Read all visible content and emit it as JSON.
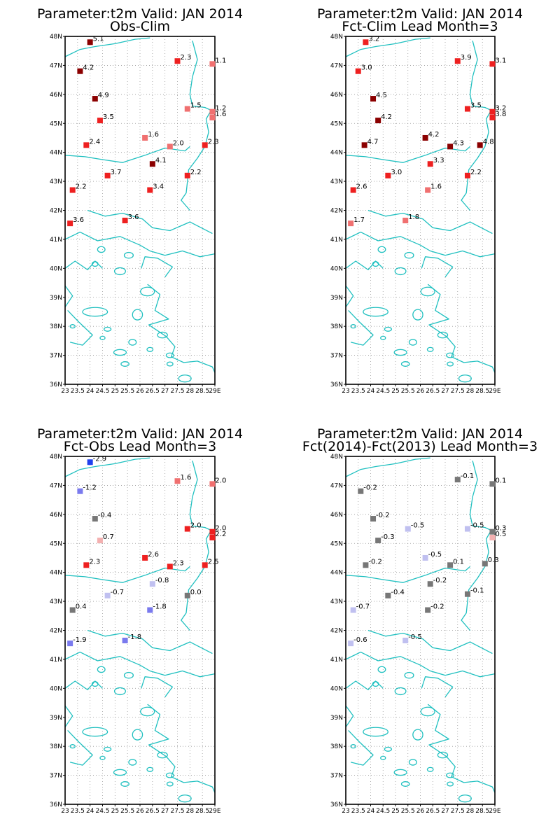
{
  "chart_data": [
    {
      "type": "scatter",
      "title": "Parameter:t2m Valid: JAN 2014",
      "subtitle": "Obs-Clim",
      "xlim": [
        23,
        29
      ],
      "ylim": [
        36,
        48
      ],
      "x_ticks": [
        "23",
        "23.5",
        "24",
        "24.5",
        "25",
        "25.5",
        "26",
        "26.5",
        "27",
        "27.5",
        "28",
        "28.5",
        "29E"
      ],
      "y_ticks": [
        "36N",
        "37N",
        "38N",
        "39N",
        "40N",
        "41N",
        "42N",
        "43N",
        "44N",
        "45N",
        "46N",
        "47N",
        "48N"
      ],
      "grid": true,
      "points": [
        {
          "lon": 24.0,
          "lat": 47.8,
          "label": "5.1",
          "color": "#8b0000"
        },
        {
          "lon": 23.6,
          "lat": 46.8,
          "label": "4.2",
          "color": "#8b0000"
        },
        {
          "lon": 24.2,
          "lat": 45.85,
          "label": "4.9",
          "color": "#8b0000"
        },
        {
          "lon": 24.4,
          "lat": 45.1,
          "label": "3.5",
          "color": "#ee2020"
        },
        {
          "lon": 23.85,
          "lat": 44.25,
          "label": "2.4",
          "color": "#ee2020"
        },
        {
          "lon": 26.2,
          "lat": 44.5,
          "label": "1.6",
          "color": "#f07070"
        },
        {
          "lon": 27.2,
          "lat": 44.2,
          "label": "2.0",
          "color": "#f07070"
        },
        {
          "lon": 28.6,
          "lat": 44.25,
          "label": "2.3",
          "color": "#ee2020"
        },
        {
          "lon": 26.5,
          "lat": 43.6,
          "label": "4.1",
          "color": "#8b0000"
        },
        {
          "lon": 27.5,
          "lat": 47.15,
          "label": "2.3",
          "color": "#ee2020"
        },
        {
          "lon": 28.9,
          "lat": 47.05,
          "label": "1.1",
          "color": "#f07070"
        },
        {
          "lon": 27.9,
          "lat": 45.5,
          "label": "1.5",
          "color": "#f07070"
        },
        {
          "lon": 28.9,
          "lat": 45.4,
          "label": "1.2",
          "color": "#f07070"
        },
        {
          "lon": 28.9,
          "lat": 45.2,
          "label": "1.6",
          "color": "#f07070"
        },
        {
          "lon": 24.7,
          "lat": 43.2,
          "label": "3.7",
          "color": "#ee2020"
        },
        {
          "lon": 27.9,
          "lat": 43.2,
          "label": "2.2",
          "color": "#ee2020"
        },
        {
          "lon": 23.3,
          "lat": 42.7,
          "label": "2.2",
          "color": "#ee2020"
        },
        {
          "lon": 26.4,
          "lat": 42.7,
          "label": "3.4",
          "color": "#ee2020"
        },
        {
          "lon": 25.4,
          "lat": 41.65,
          "label": "3.6",
          "color": "#ee2020"
        },
        {
          "lon": 23.2,
          "lat": 41.55,
          "label": "3.6",
          "color": "#ee2020"
        }
      ]
    },
    {
      "type": "scatter",
      "title": "Parameter:t2m Valid: JAN 2014",
      "subtitle": "Fct-Clim Lead Month=3",
      "xlim": [
        23,
        29
      ],
      "ylim": [
        36,
        48
      ],
      "x_ticks": [
        "23",
        "23.5",
        "24",
        "24.5",
        "25",
        "25.5",
        "26",
        "26.5",
        "27",
        "27.5",
        "28",
        "28.5",
        "29E"
      ],
      "y_ticks": [
        "36N",
        "37N",
        "38N",
        "39N",
        "40N",
        "41N",
        "42N",
        "43N",
        "44N",
        "45N",
        "46N",
        "47N",
        "48N"
      ],
      "grid": true,
      "points": [
        {
          "lon": 23.8,
          "lat": 47.8,
          "label": "3.2",
          "color": "#ee2020"
        },
        {
          "lon": 23.5,
          "lat": 46.8,
          "label": "3.0",
          "color": "#ee2020"
        },
        {
          "lon": 24.1,
          "lat": 45.85,
          "label": "4.5",
          "color": "#8b0000"
        },
        {
          "lon": 24.3,
          "lat": 45.1,
          "label": "4.2",
          "color": "#8b0000"
        },
        {
          "lon": 23.75,
          "lat": 44.25,
          "label": "4.7",
          "color": "#8b0000"
        },
        {
          "lon": 26.2,
          "lat": 44.5,
          "label": "4.2",
          "color": "#8b0000"
        },
        {
          "lon": 27.2,
          "lat": 44.2,
          "label": "4.3",
          "color": "#8b0000"
        },
        {
          "lon": 28.4,
          "lat": 44.25,
          "label": "4.8",
          "color": "#8b0000"
        },
        {
          "lon": 26.4,
          "lat": 43.6,
          "label": "3.3",
          "color": "#ee2020"
        },
        {
          "lon": 27.5,
          "lat": 47.15,
          "label": "3.9",
          "color": "#ee2020"
        },
        {
          "lon": 28.9,
          "lat": 47.05,
          "label": "3.1",
          "color": "#ee2020"
        },
        {
          "lon": 27.9,
          "lat": 45.5,
          "label": "3.5",
          "color": "#ee2020"
        },
        {
          "lon": 28.9,
          "lat": 45.4,
          "label": "3.2",
          "color": "#ee2020"
        },
        {
          "lon": 28.9,
          "lat": 45.2,
          "label": "3.8",
          "color": "#ee2020"
        },
        {
          "lon": 24.7,
          "lat": 43.2,
          "label": "3.0",
          "color": "#ee2020"
        },
        {
          "lon": 27.9,
          "lat": 43.2,
          "label": "2.2",
          "color": "#ee2020"
        },
        {
          "lon": 23.3,
          "lat": 42.7,
          "label": "2.6",
          "color": "#ee2020"
        },
        {
          "lon": 26.3,
          "lat": 42.7,
          "label": "1.6",
          "color": "#f07070"
        },
        {
          "lon": 25.4,
          "lat": 41.65,
          "label": "1.8",
          "color": "#f07070"
        },
        {
          "lon": 23.2,
          "lat": 41.55,
          "label": "1.7",
          "color": "#f07070"
        }
      ]
    },
    {
      "type": "scatter",
      "title": "Parameter:t2m Valid: JAN 2014",
      "subtitle": "Fct-Obs Lead Month=3",
      "xlim": [
        23,
        29
      ],
      "ylim": [
        36,
        48
      ],
      "x_ticks": [
        "23",
        "23.5",
        "24",
        "24.5",
        "25",
        "25.5",
        "26",
        "26.5",
        "27",
        "27.5",
        "28",
        "28.5",
        "29E"
      ],
      "y_ticks": [
        "36N",
        "37N",
        "38N",
        "39N",
        "40N",
        "41N",
        "42N",
        "43N",
        "44N",
        "45N",
        "46N",
        "47N",
        "48N"
      ],
      "grid": true,
      "points": [
        {
          "lon": 24.0,
          "lat": 47.8,
          "label": "-2.9",
          "color": "#2040ee"
        },
        {
          "lon": 23.6,
          "lat": 46.8,
          "label": "-1.2",
          "color": "#7a7aee"
        },
        {
          "lon": 24.2,
          "lat": 45.85,
          "label": "-0.4",
          "color": "#777777"
        },
        {
          "lon": 24.4,
          "lat": 45.1,
          "label": "0.7",
          "color": "#f4b0b0"
        },
        {
          "lon": 23.85,
          "lat": 44.25,
          "label": "2.3",
          "color": "#ee2020"
        },
        {
          "lon": 26.2,
          "lat": 44.5,
          "label": "2.6",
          "color": "#ee2020"
        },
        {
          "lon": 27.2,
          "lat": 44.2,
          "label": "2.3",
          "color": "#ee2020"
        },
        {
          "lon": 28.6,
          "lat": 44.25,
          "label": "2.5",
          "color": "#ee2020"
        },
        {
          "lon": 26.5,
          "lat": 43.6,
          "label": "-0.8",
          "color": "#c0c0f0"
        },
        {
          "lon": 27.5,
          "lat": 47.15,
          "label": "1.6",
          "color": "#f07070"
        },
        {
          "lon": 28.9,
          "lat": 47.05,
          "label": "2.0",
          "color": "#f07070"
        },
        {
          "lon": 27.9,
          "lat": 45.5,
          "label": "2.0",
          "color": "#ee2020"
        },
        {
          "lon": 28.9,
          "lat": 45.4,
          "label": "2.0",
          "color": "#ee2020"
        },
        {
          "lon": 28.9,
          "lat": 45.2,
          "label": "2.2",
          "color": "#ee2020"
        },
        {
          "lon": 24.7,
          "lat": 43.2,
          "label": "-0.7",
          "color": "#c0c0f0"
        },
        {
          "lon": 27.9,
          "lat": 43.2,
          "label": "0.0",
          "color": "#777777"
        },
        {
          "lon": 23.3,
          "lat": 42.7,
          "label": "0.4",
          "color": "#777777"
        },
        {
          "lon": 26.4,
          "lat": 42.7,
          "label": "-1.8",
          "color": "#7a7aee"
        },
        {
          "lon": 25.4,
          "lat": 41.65,
          "label": "-1.8",
          "color": "#7a7aee"
        },
        {
          "lon": 23.2,
          "lat": 41.55,
          "label": "-1.9",
          "color": "#7a7aee"
        }
      ]
    },
    {
      "type": "scatter",
      "title": "Parameter:t2m Valid: JAN 2014",
      "subtitle": "Fct(2014)-Fct(2013) Lead Month=3",
      "xlim": [
        23,
        29
      ],
      "ylim": [
        36,
        48
      ],
      "x_ticks": [
        "23",
        "23.5",
        "24",
        "24.5",
        "25",
        "25.5",
        "26",
        "26.5",
        "27",
        "27.5",
        "28",
        "28.5",
        "29E"
      ],
      "y_ticks": [
        "36N",
        "37N",
        "38N",
        "39N",
        "40N",
        "41N",
        "42N",
        "43N",
        "44N",
        "45N",
        "46N",
        "47N",
        "48N"
      ],
      "grid": true,
      "points": [
        {
          "lon": 27.5,
          "lat": 47.2,
          "label": "-0.1",
          "color": "#777777"
        },
        {
          "lon": 28.9,
          "lat": 47.05,
          "label": "0.1",
          "color": "#777777"
        },
        {
          "lon": 23.6,
          "lat": 46.8,
          "label": "-0.2",
          "color": "#777777"
        },
        {
          "lon": 24.1,
          "lat": 45.85,
          "label": "-0.2",
          "color": "#777777"
        },
        {
          "lon": 25.5,
          "lat": 45.5,
          "label": "-0.5",
          "color": "#c0c0f0"
        },
        {
          "lon": 27.9,
          "lat": 45.5,
          "label": "-0.5",
          "color": "#c0c0f0"
        },
        {
          "lon": 28.9,
          "lat": 45.4,
          "label": "0.3",
          "color": "#777777"
        },
        {
          "lon": 28.9,
          "lat": 45.2,
          "label": "0.5",
          "color": "#f4b0b0"
        },
        {
          "lon": 24.3,
          "lat": 45.1,
          "label": "-0.3",
          "color": "#777777"
        },
        {
          "lon": 23.8,
          "lat": 44.25,
          "label": "-0.2",
          "color": "#777777"
        },
        {
          "lon": 26.2,
          "lat": 44.5,
          "label": "-0.5",
          "color": "#c0c0f0"
        },
        {
          "lon": 27.2,
          "lat": 44.25,
          "label": "0.1",
          "color": "#777777"
        },
        {
          "lon": 28.6,
          "lat": 44.3,
          "label": "0.3",
          "color": "#777777"
        },
        {
          "lon": 26.4,
          "lat": 43.6,
          "label": "-0.2",
          "color": "#777777"
        },
        {
          "lon": 24.7,
          "lat": 43.2,
          "label": "-0.4",
          "color": "#777777"
        },
        {
          "lon": 27.9,
          "lat": 43.25,
          "label": "-0.1",
          "color": "#777777"
        },
        {
          "lon": 23.3,
          "lat": 42.7,
          "label": "-0.7",
          "color": "#c0c0f0"
        },
        {
          "lon": 26.3,
          "lat": 42.7,
          "label": "-0.2",
          "color": "#777777"
        },
        {
          "lon": 25.4,
          "lat": 41.65,
          "label": "-0.5",
          "color": "#c0c0f0"
        },
        {
          "lon": 23.2,
          "lat": 41.55,
          "label": "-0.6",
          "color": "#c0c0f0"
        }
      ]
    }
  ]
}
